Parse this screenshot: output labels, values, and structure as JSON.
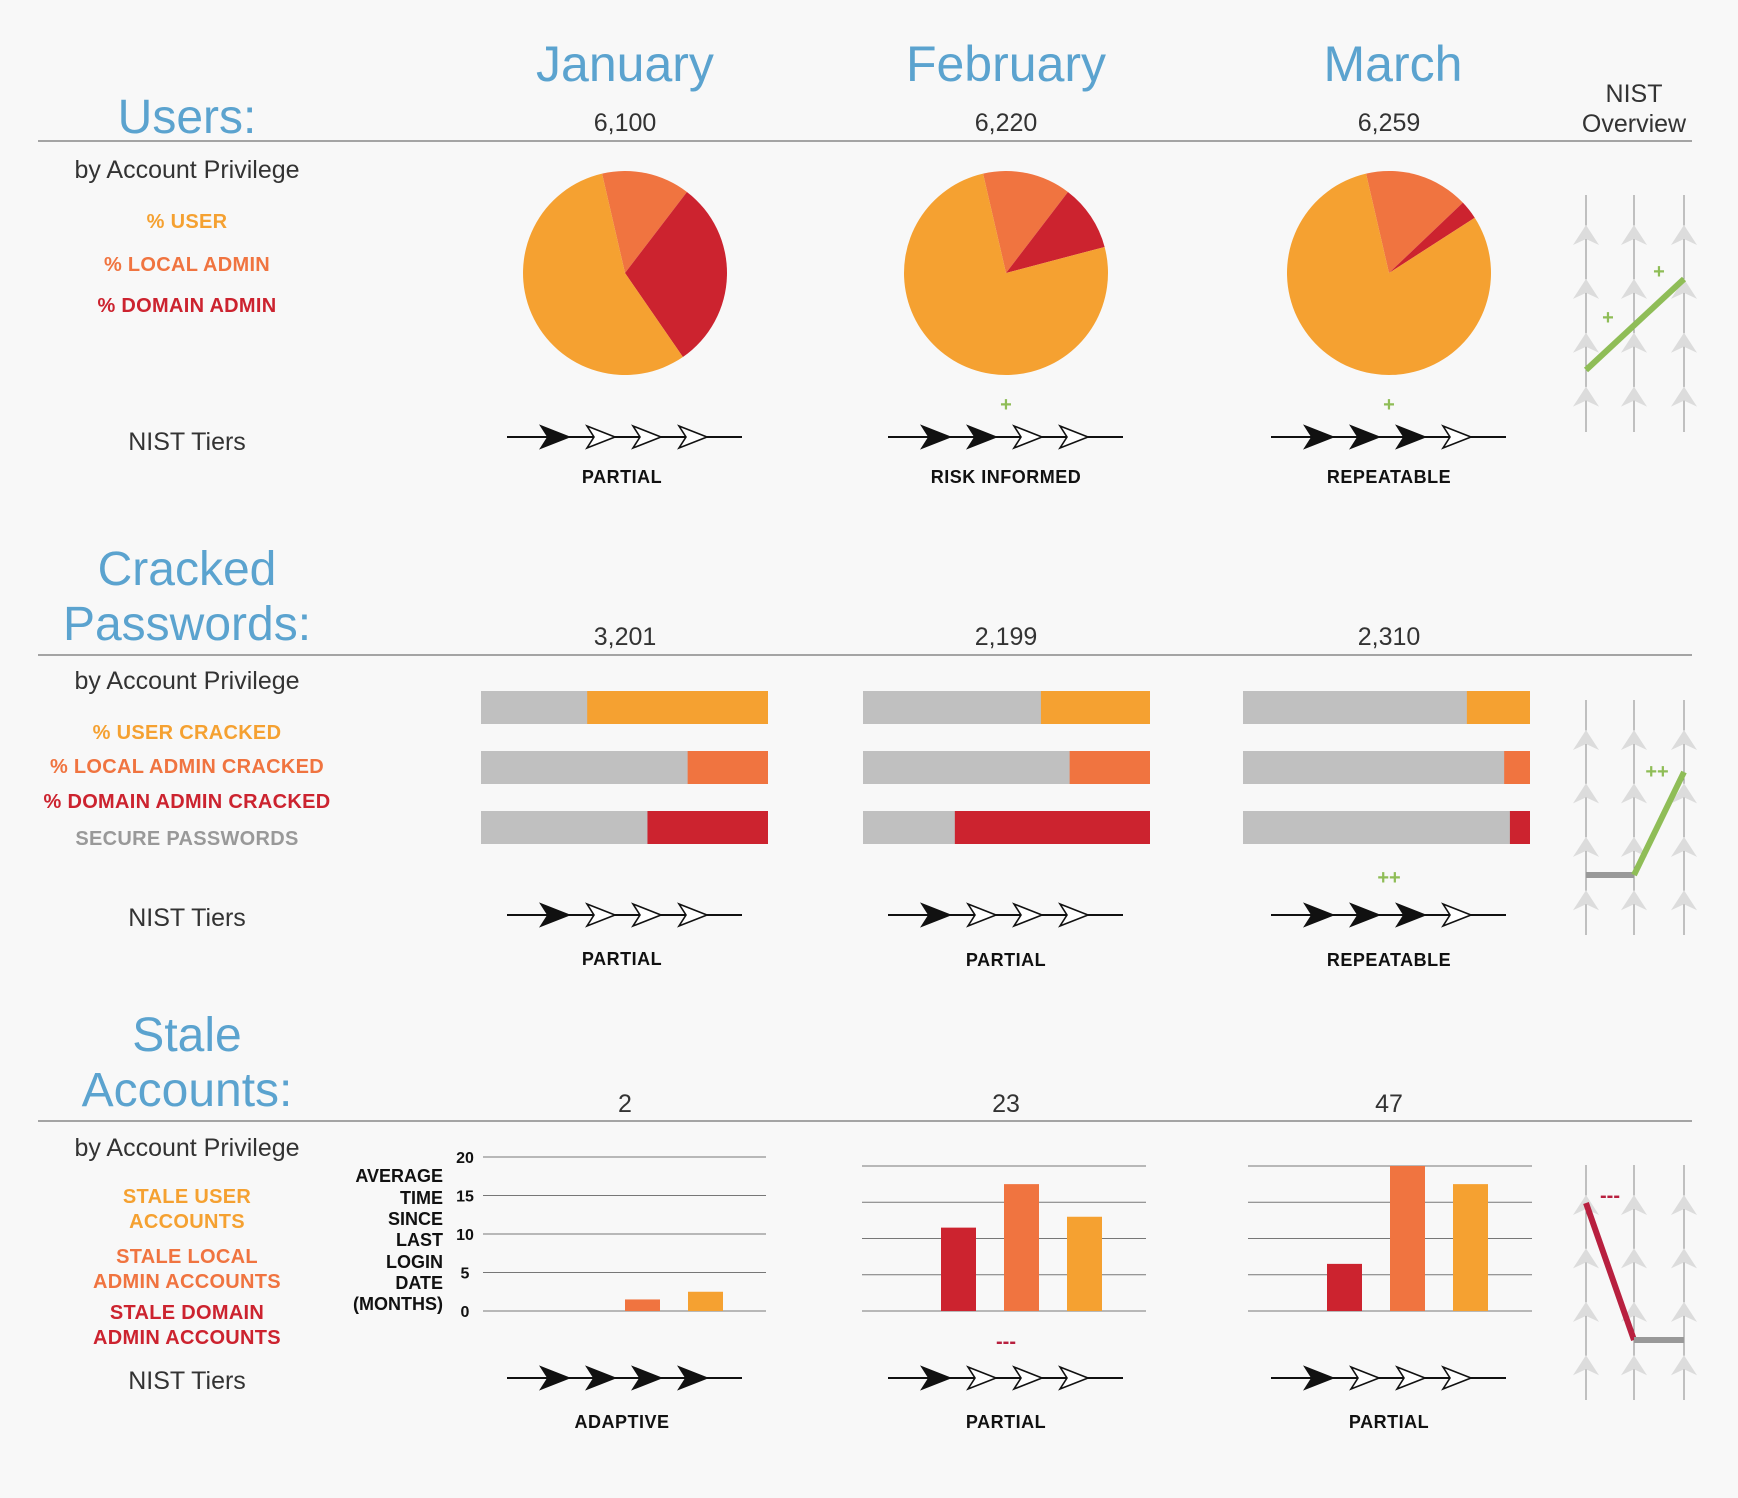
{
  "months": [
    "January",
    "February",
    "March"
  ],
  "nist_overview": {
    "line1": "NIST",
    "line2": "Overview"
  },
  "nist_tiers_label": "NIST Tiers",
  "by_account_privilege": "by Account Privilege",
  "colors": {
    "user": "#f5a131",
    "local_admin": "#f07440",
    "domain_admin": "#cc232f",
    "secure": "#c0c0c0",
    "title_blue": "#5ba3cf",
    "up_green": "#8fbd57",
    "down_red": "#b8203f",
    "flat_gray": "#999999"
  },
  "users": {
    "title_line1": "Users:",
    "counts": [
      "6,100",
      "6,220",
      "6,259"
    ],
    "legend": [
      "% USER",
      "% LOCAL ADMIN",
      "% DOMAIN ADMIN"
    ],
    "tiers": [
      "PARTIAL",
      "RISK INFORMED",
      "REPEATABLE"
    ],
    "tier_levels": [
      1,
      2,
      3
    ],
    "change_marks": [
      "",
      "+",
      "+"
    ],
    "overview_marks": [
      "+",
      "+"
    ]
  },
  "cracked": {
    "title_line1": "Cracked",
    "title_line2": "Passwords:",
    "counts": [
      "3,201",
      "2,199",
      "2,310"
    ],
    "legend": [
      "% USER CRACKED",
      "% LOCAL ADMIN CRACKED",
      "% DOMAIN ADMIN CRACKED",
      "SECURE PASSWORDS"
    ],
    "tiers": [
      "PARTIAL",
      "PARTIAL",
      "REPEATABLE"
    ],
    "tier_levels": [
      1,
      1,
      3
    ],
    "change_marks": [
      "",
      "",
      "++"
    ],
    "overview_marks": [
      "++"
    ]
  },
  "stale": {
    "title_line1": "Stale",
    "title_line2": "Accounts:",
    "counts": [
      "2",
      "23",
      "47"
    ],
    "legend": [
      [
        "STALE USER",
        "ACCOUNTS"
      ],
      [
        "STALE LOCAL",
        "ADMIN ACCOUNTS"
      ],
      [
        "STALE DOMAIN",
        "ADMIN ACCOUNTS"
      ]
    ],
    "axis_title": [
      "AVERAGE",
      "TIME",
      "SINCE",
      "LAST",
      "LOGIN",
      "DATE",
      "(MONTHS)"
    ],
    "tiers": [
      "ADAPTIVE",
      "PARTIAL",
      "PARTIAL"
    ],
    "tier_levels": [
      4,
      1,
      1
    ],
    "change_marks": [
      "",
      "---",
      ""
    ],
    "overview_marks": [
      "---"
    ]
  },
  "chart_data": [
    {
      "type": "pie",
      "title": "Users: by Account Privilege",
      "categories": [
        "% USER",
        "% LOCAL ADMIN",
        "% DOMAIN ADMIN"
      ],
      "series": [
        {
          "name": "January",
          "values": [
            56,
            14,
            30
          ]
        },
        {
          "name": "February",
          "values": [
            75.5,
            14,
            10.5
          ]
        },
        {
          "name": "March",
          "values": [
            80.5,
            16.5,
            3
          ]
        }
      ]
    },
    {
      "type": "bar",
      "title": "Cracked Passwords: by Account Privilege",
      "orientation": "horizontal",
      "xlim": [
        0,
        100
      ],
      "categories": [
        "% USER CRACKED",
        "% LOCAL ADMIN CRACKED",
        "% DOMAIN ADMIN CRACKED"
      ],
      "series": [
        {
          "name": "January",
          "values": [
            63,
            28,
            42
          ]
        },
        {
          "name": "February",
          "values": [
            38,
            28,
            68
          ]
        },
        {
          "name": "March",
          "values": [
            22,
            9,
            7
          ]
        }
      ]
    },
    {
      "type": "bar",
      "title": "Stale Accounts: by Account Privilege",
      "ylabel": "AVERAGE TIME SINCE LAST LOGIN DATE (MONTHS)",
      "ylim": [
        0,
        20
      ],
      "yticks": [
        0,
        5,
        10,
        15,
        20
      ],
      "categories": [
        "STALE DOMAIN ADMIN ACCOUNTS",
        "STALE LOCAL ADMIN ACCOUNTS",
        "STALE USER ACCOUNTS"
      ],
      "series": [
        {
          "name": "January",
          "values": [
            0,
            1.5,
            2.5
          ]
        },
        {
          "name": "February",
          "values": [
            11.5,
            17.5,
            13
          ]
        },
        {
          "name": "March",
          "values": [
            6.5,
            20,
            17.5
          ]
        }
      ]
    }
  ]
}
